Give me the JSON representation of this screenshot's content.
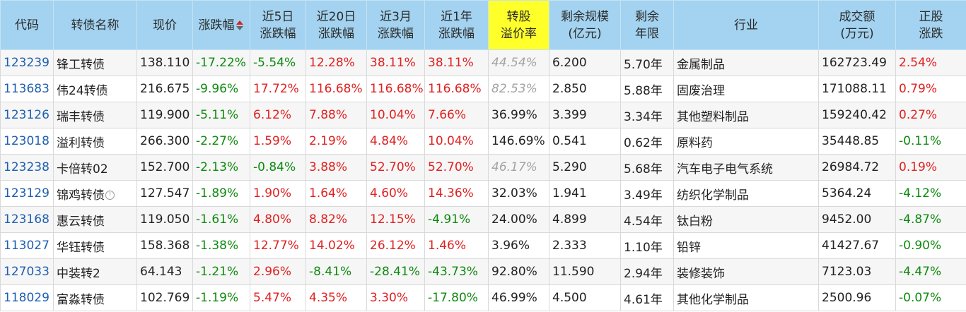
{
  "headers": {
    "code": "代码",
    "name": "转债名称",
    "price": "现价",
    "change": "涨跌幅",
    "d5": [
      "近5日",
      "涨跌幅"
    ],
    "d20": [
      "近20日",
      "涨跌幅"
    ],
    "m3": [
      "近3月",
      "涨跌幅"
    ],
    "y1": [
      "近1年",
      "涨跌幅"
    ],
    "premium": [
      "转股",
      "溢价率"
    ],
    "scale": [
      "剩余规模",
      "(亿元)"
    ],
    "years": [
      "剩余",
      "年限"
    ],
    "industry": "行业",
    "volume": [
      "成交额",
      "(万元)"
    ],
    "stock": [
      "正股",
      "涨跌"
    ]
  },
  "colors": {
    "header_bg": "#a3d3f0",
    "highlight": "#ffff2a",
    "up": "#e02020",
    "down": "#0e8a0e",
    "code": "#1f5fb0"
  },
  "rows": [
    {
      "code": "123239",
      "name": "锋工转债",
      "price": "138.110",
      "change": "-17.22%",
      "d5": "-5.54%",
      "d20": "12.28%",
      "m3": "38.11%",
      "y1": "38.11%",
      "premium": "44.54%",
      "premium_gray": true,
      "scale": "6.200",
      "years": "5.70年",
      "industry": "金属制品",
      "volume": "162723.49",
      "stock": "2.54%",
      "info": false
    },
    {
      "code": "113683",
      "name": "伟24转债",
      "price": "216.675",
      "change": "-9.96%",
      "d5": "17.72%",
      "d20": "116.68%",
      "m3": "116.68%",
      "y1": "116.68%",
      "premium": "82.53%",
      "premium_gray": true,
      "scale": "2.850",
      "years": "5.88年",
      "industry": "固废治理",
      "volume": "171088.11",
      "stock": "0.79%",
      "info": false
    },
    {
      "code": "123126",
      "name": "瑞丰转债",
      "price": "119.900",
      "change": "-5.11%",
      "d5": "6.12%",
      "d20": "7.88%",
      "m3": "10.04%",
      "y1": "7.66%",
      "premium": "36.99%",
      "premium_gray": false,
      "scale": "3.399",
      "years": "3.34年",
      "industry": "其他塑料制品",
      "volume": "159240.42",
      "stock": "0.27%",
      "info": false
    },
    {
      "code": "123018",
      "name": "溢利转债",
      "price": "266.300",
      "change": "-2.27%",
      "d5": "1.59%",
      "d20": "2.19%",
      "m3": "4.84%",
      "y1": "10.04%",
      "premium": "146.69%",
      "premium_gray": false,
      "scale": "0.541",
      "years": "0.62年",
      "industry": "原料药",
      "volume": "35448.85",
      "stock": "-0.11%",
      "info": false
    },
    {
      "code": "123238",
      "name": "卡倍转02",
      "price": "152.700",
      "change": "-2.13%",
      "d5": "-0.84%",
      "d20": "3.88%",
      "m3": "52.70%",
      "y1": "52.70%",
      "premium": "46.17%",
      "premium_gray": true,
      "scale": "5.290",
      "years": "5.68年",
      "industry": "汽车电子电气系统",
      "volume": "26984.72",
      "stock": "0.19%",
      "info": false
    },
    {
      "code": "123129",
      "name": "锦鸡转债",
      "price": "127.547",
      "change": "-1.89%",
      "d5": "1.90%",
      "d20": "1.64%",
      "m3": "4.60%",
      "y1": "14.36%",
      "premium": "32.03%",
      "premium_gray": false,
      "scale": "1.941",
      "years": "3.49年",
      "industry": "纺织化学制品",
      "volume": "5364.24",
      "stock": "-4.12%",
      "info": true
    },
    {
      "code": "123168",
      "name": "惠云转债",
      "price": "119.050",
      "change": "-1.61%",
      "d5": "4.80%",
      "d20": "8.82%",
      "m3": "12.15%",
      "y1": "-4.91%",
      "premium": "24.00%",
      "premium_gray": false,
      "scale": "4.899",
      "years": "4.54年",
      "industry": "钛白粉",
      "volume": "9452.00",
      "stock": "-4.87%",
      "info": false
    },
    {
      "code": "113027",
      "name": "华钰转债",
      "price": "158.368",
      "change": "-1.38%",
      "d5": "12.77%",
      "d20": "14.02%",
      "m3": "26.12%",
      "y1": "1.46%",
      "premium": "3.96%",
      "premium_gray": false,
      "scale": "2.333",
      "years": "1.10年",
      "industry": "铅锌",
      "volume": "41427.67",
      "stock": "-0.90%",
      "info": false
    },
    {
      "code": "127033",
      "name": "中装转2",
      "price": "64.143",
      "change": "-1.21%",
      "d5": "2.96%",
      "d20": "-8.41%",
      "m3": "-28.41%",
      "y1": "-43.73%",
      "premium": "92.80%",
      "premium_gray": false,
      "scale": "11.590",
      "years": "2.94年",
      "industry": "装修装饰",
      "volume": "7123.03",
      "stock": "-4.47%",
      "info": false
    },
    {
      "code": "118029",
      "name": "富淼转债",
      "price": "102.769",
      "change": "-1.19%",
      "d5": "5.47%",
      "d20": "4.35%",
      "m3": "3.30%",
      "y1": "-17.80%",
      "premium": "46.99%",
      "premium_gray": false,
      "scale": "4.500",
      "years": "4.61年",
      "industry": "其他化学制品",
      "volume": "2500.96",
      "stock": "-0.07%",
      "info": false
    }
  ]
}
